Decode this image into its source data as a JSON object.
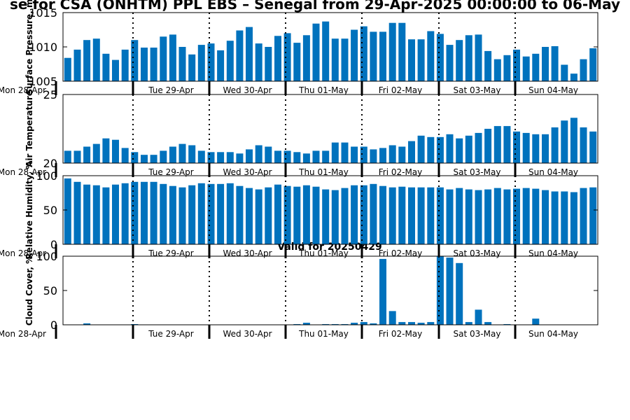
{
  "header": {
    "title": "se for CSA (ONHTM) PPL EBS  – Senegal from 29-Apr-2025 00:00:00 to 06-May",
    "valid_label": "Valid for 20250429"
  },
  "colors": {
    "bar": "#0072bd",
    "axis": "#000000",
    "background": "#ffffff"
  },
  "chart_data": [
    {
      "type": "bar",
      "ylabel": "Surface Pressure, m",
      "ylim": [
        1005,
        1015
      ],
      "yticks": [
        1005,
        1010,
        1015
      ],
      "x_ticklabels": [
        "Mon 28-Apr",
        "Tue 29-Apr",
        "Wed 30-Apr",
        "Thu 01-May",
        "Fri 02-May",
        "Sat 03-May",
        "Sun 04-May"
      ],
      "day_divider_dotted": true,
      "values": [
        1008.4,
        1009.6,
        1011.0,
        1011.2,
        1009.0,
        1008.1,
        1009.6,
        1011.0,
        1009.9,
        1009.9,
        1011.5,
        1011.8,
        1010.0,
        1008.9,
        1010.3,
        1010.5,
        1009.5,
        1010.9,
        1012.4,
        1012.9,
        1010.5,
        1010.0,
        1011.6,
        1012.0,
        1010.6,
        1011.7,
        1013.4,
        1013.7,
        1011.2,
        1011.2,
        1012.5,
        1013.0,
        1012.2,
        1012.2,
        1013.5,
        1013.5,
        1011.1,
        1011.1,
        1012.3,
        1011.9,
        1010.3,
        1011.0,
        1011.7,
        1011.8,
        1009.4,
        1008.2,
        1008.8,
        1009.6,
        1008.6,
        1009.0,
        1010.0,
        1010.1,
        1007.4,
        1006.1,
        1008.2,
        1009.8
      ]
    },
    {
      "type": "bar",
      "ylabel": "Air Temperature",
      "ylim": [
        20,
        25
      ],
      "yticks": [
        20,
        25
      ],
      "x_ticklabels": [
        "Mon 28-Apr",
        "Tue 29-Apr",
        "Wed 30-Apr",
        "Thu 01-May",
        "Fri 02-May",
        "Sat 03-May",
        "Sun 04-May"
      ],
      "day_divider_dotted": true,
      "values": [
        20.9,
        20.9,
        21.2,
        21.4,
        21.8,
        21.7,
        21.1,
        20.8,
        20.6,
        20.6,
        20.9,
        21.2,
        21.4,
        21.3,
        20.9,
        20.8,
        20.8,
        20.8,
        20.7,
        21.0,
        21.3,
        21.2,
        20.9,
        20.9,
        20.8,
        20.7,
        20.9,
        20.9,
        21.5,
        21.5,
        21.2,
        21.2,
        21.0,
        21.1,
        21.3,
        21.2,
        21.6,
        22.0,
        21.9,
        21.9,
        22.1,
        21.8,
        22.0,
        22.2,
        22.5,
        22.7,
        22.7,
        22.3,
        22.2,
        22.1,
        22.1,
        22.6,
        23.1,
        23.3,
        22.6,
        22.3
      ]
    },
    {
      "type": "bar",
      "ylabel": "Relative Humidity, %",
      "ylim": [
        0,
        100
      ],
      "yticks": [
        0,
        50,
        100
      ],
      "x_ticklabels": [
        "Mon 28-Apr",
        "Tue 29-Apr",
        "Wed 30-Apr",
        "Thu 01-May",
        "Fri 02-May",
        "Sat 03-May",
        "Sun 04-May"
      ],
      "day_divider_dotted": true,
      "values": [
        96,
        91,
        87,
        86,
        83,
        87,
        89,
        91,
        91,
        91,
        88,
        85,
        83,
        86,
        89,
        88,
        88,
        89,
        85,
        82,
        80,
        83,
        87,
        85,
        84,
        86,
        84,
        80,
        79,
        82,
        86,
        86,
        88,
        85,
        83,
        84,
        83,
        83,
        83,
        83,
        80,
        82,
        80,
        79,
        80,
        82,
        80,
        81,
        82,
        81,
        79,
        77,
        77,
        76,
        82,
        83
      ]
    },
    {
      "type": "bar",
      "ylabel": "Cloud Cover, %",
      "ylim": [
        0,
        100
      ],
      "yticks": [
        0,
        50,
        100
      ],
      "x_ticklabels": [
        "Mon 28-Apr",
        "Tue 29-Apr",
        "Wed 30-Apr",
        "Thu 01-May",
        "Fri 02-May",
        "Sat 03-May",
        "Sun 04-May"
      ],
      "day_divider_dotted": true,
      "values": [
        0,
        0,
        2,
        0,
        0,
        0,
        0,
        1,
        0,
        0,
        0,
        0,
        0,
        0,
        0,
        0,
        0,
        0,
        0,
        0,
        0,
        0,
        0,
        0,
        1,
        3,
        0,
        1,
        1,
        1,
        3,
        4,
        2,
        96,
        20,
        4,
        4,
        3,
        4,
        100,
        98,
        90,
        4,
        22,
        4,
        0,
        1,
        0,
        0,
        9,
        0,
        0,
        0,
        0,
        0,
        0
      ]
    }
  ]
}
